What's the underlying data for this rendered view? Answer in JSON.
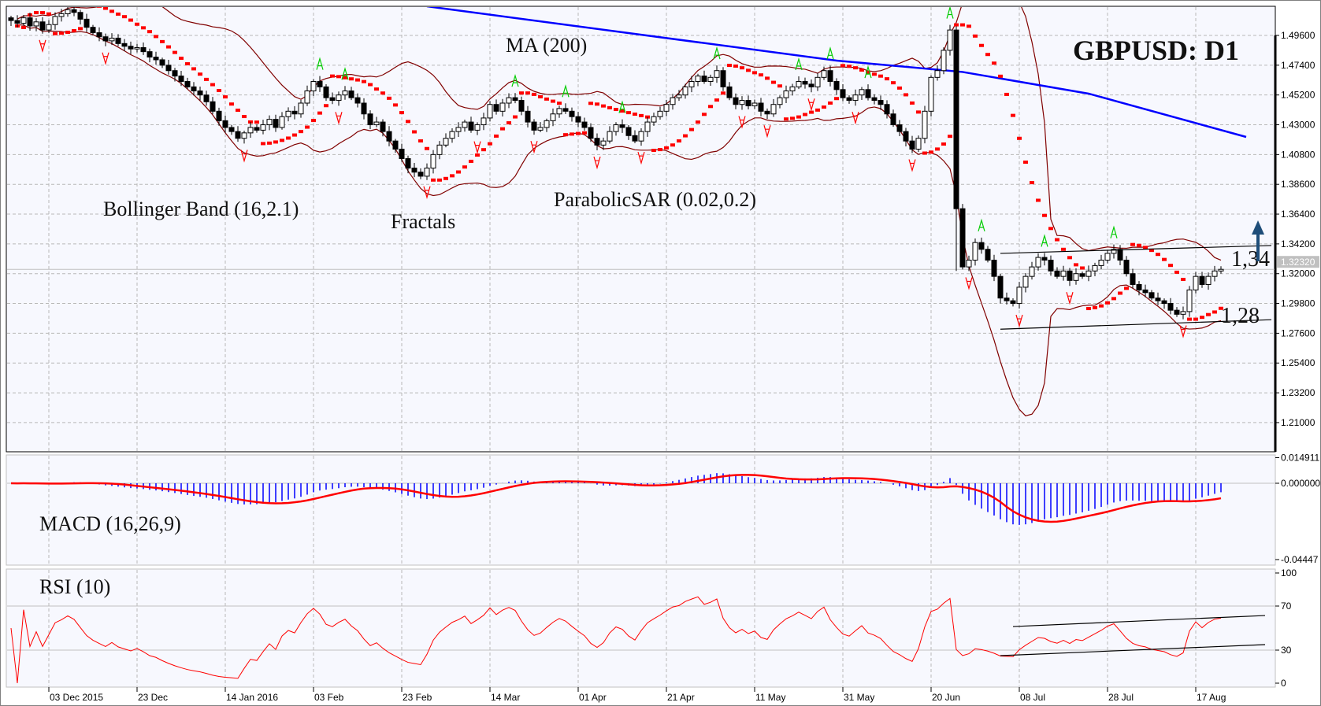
{
  "colors": {
    "panel_background": "#f7f8fe",
    "grid": "#b8b8b8",
    "candle_up_body": "#ffffff",
    "candle_down_body": "#000000",
    "bollinger": "#800000",
    "parabolic_sar": "#ff0000",
    "ma200": "#0000ff",
    "fractal_up": "#00cc00",
    "fractal_down": "#ff0000",
    "macd_histogram": "#0000ff",
    "macd_signal": "#ff0000",
    "rsi": "#ff0000",
    "arrow": "#1f4e79"
  },
  "annotations": {
    "title": "GBPUSD: D1",
    "ma": "MA (200)",
    "bollinger": "Bollinger Band (16,2.1)",
    "fractals": "Fractals",
    "sar": "ParabolicSAR (0.02,0.2)",
    "macd": "MACD (16,26,9)",
    "rsi": "RSI (10)",
    "resistance": "1,34",
    "support": "1,28",
    "arrow_icon": "up-arrow"
  },
  "chart_data": [
    {
      "type": "candlestick",
      "title": "GBPUSD: D1",
      "x_ticks": [
        "03 Dec 2015",
        "23 Dec",
        "14 Jan 2016",
        "03 Feb",
        "23 Feb",
        "14 Mar",
        "01 Apr",
        "21 Apr",
        "11 May",
        "31 May",
        "20 Jun",
        "08 Jul",
        "28 Jul",
        "17 Aug"
      ],
      "y_ticks": [
        "1.49600",
        "1.47400",
        "1.45200",
        "1.43000",
        "1.40800",
        "1.38600",
        "1.36400",
        "1.34200",
        "1.32000",
        "1.29800",
        "1.27600",
        "1.25400",
        "1.23200",
        "1.21000"
      ],
      "ylim": [
        1.2,
        1.52
      ],
      "current_price": "1.32320",
      "grid": true,
      "close": [
        1.507,
        1.505,
        1.509,
        1.503,
        1.506,
        1.5,
        1.504,
        1.51,
        1.512,
        1.515,
        1.513,
        1.508,
        1.502,
        1.498,
        1.495,
        1.492,
        1.494,
        1.49,
        1.488,
        1.486,
        1.487,
        1.484,
        1.48,
        1.478,
        1.474,
        1.47,
        1.466,
        1.462,
        1.458,
        1.455,
        1.452,
        1.447,
        1.44,
        1.433,
        1.428,
        1.425,
        1.42,
        1.424,
        1.428,
        1.426,
        1.43,
        1.434,
        1.428,
        1.436,
        1.44,
        1.438,
        1.446,
        1.455,
        1.462,
        1.458,
        1.45,
        1.448,
        1.452,
        1.455,
        1.45,
        1.446,
        1.438,
        1.43,
        1.432,
        1.425,
        1.418,
        1.412,
        1.405,
        1.398,
        1.395,
        1.392,
        1.398,
        1.408,
        1.415,
        1.42,
        1.425,
        1.428,
        1.432,
        1.426,
        1.43,
        1.435,
        1.445,
        1.44,
        1.446,
        1.45,
        1.448,
        1.44,
        1.432,
        1.426,
        1.428,
        1.433,
        1.438,
        1.442,
        1.44,
        1.436,
        1.432,
        1.428,
        1.42,
        1.415,
        1.418,
        1.425,
        1.43,
        1.428,
        1.422,
        1.418,
        1.425,
        1.432,
        1.436,
        1.44,
        1.445,
        1.45,
        1.452,
        1.458,
        1.462,
        1.466,
        1.462,
        1.465,
        1.47,
        1.458,
        1.45,
        1.445,
        1.448,
        1.444,
        1.446,
        1.44,
        1.438,
        1.445,
        1.45,
        1.455,
        1.458,
        1.462,
        1.46,
        1.458,
        1.465,
        1.47,
        1.462,
        1.456,
        1.45,
        1.448,
        1.452,
        1.456,
        1.45,
        1.448,
        1.445,
        1.438,
        1.43,
        1.425,
        1.418,
        1.412,
        1.42,
        1.44,
        1.465,
        1.47,
        1.485,
        1.5,
        1.368,
        1.325,
        1.33,
        1.343,
        1.338,
        1.33,
        1.318,
        1.302,
        1.3,
        1.298,
        1.31,
        1.318,
        1.325,
        1.332,
        1.33,
        1.322,
        1.318,
        1.322,
        1.315,
        1.32,
        1.318,
        1.322,
        1.326,
        1.33,
        1.335,
        1.338,
        1.33,
        1.32,
        1.312,
        1.308,
        1.306,
        1.302,
        1.3,
        1.298,
        1.293,
        1.29,
        1.292,
        1.308,
        1.318,
        1.312,
        1.318,
        1.322,
        1.3232
      ],
      "ma200": [
        {
          "bar": 66,
          "value": 1.5175
        },
        {
          "bar": 131,
          "value": 1.4774
        },
        {
          "bar": 151,
          "value": 1.469
        },
        {
          "bar": 171,
          "value": 1.453
        },
        {
          "bar": 196,
          "value": 1.421
        }
      ],
      "trendlines": [
        {
          "label": "1,34",
          "from": {
            "bar": 157,
            "value": 1.335
          },
          "to": {
            "bar": 200,
            "value": 1.3408
          }
        },
        {
          "label": "1,28",
          "from": {
            "bar": 157,
            "value": 1.279
          },
          "to": {
            "bar": 200,
            "value": 1.286
          }
        }
      ],
      "indicators": [
        "MA (200)",
        "Bollinger Band (16,2.1)",
        "Fractals",
        "ParabolicSAR (0.02,0.2)"
      ]
    },
    {
      "type": "bar",
      "name": "MACD (16,26,9)",
      "y_ticks": [
        "0.014911",
        "0.000000",
        "-0.04447"
      ],
      "ylim": [
        -0.04447,
        0.014911
      ]
    },
    {
      "type": "line",
      "name": "RSI (10)",
      "y_ticks": [
        "100",
        "70",
        "30",
        "0"
      ],
      "ylim": [
        0,
        100
      ],
      "levels": [
        70,
        30
      ],
      "trendlines": [
        {
          "from": {
            "bar": 159,
            "value": 51.4
          },
          "to": {
            "bar": 199,
            "value": 61.4
          }
        },
        {
          "from": {
            "bar": 157,
            "value": 25
          },
          "to": {
            "bar": 199,
            "value": 35
          }
        }
      ]
    }
  ]
}
